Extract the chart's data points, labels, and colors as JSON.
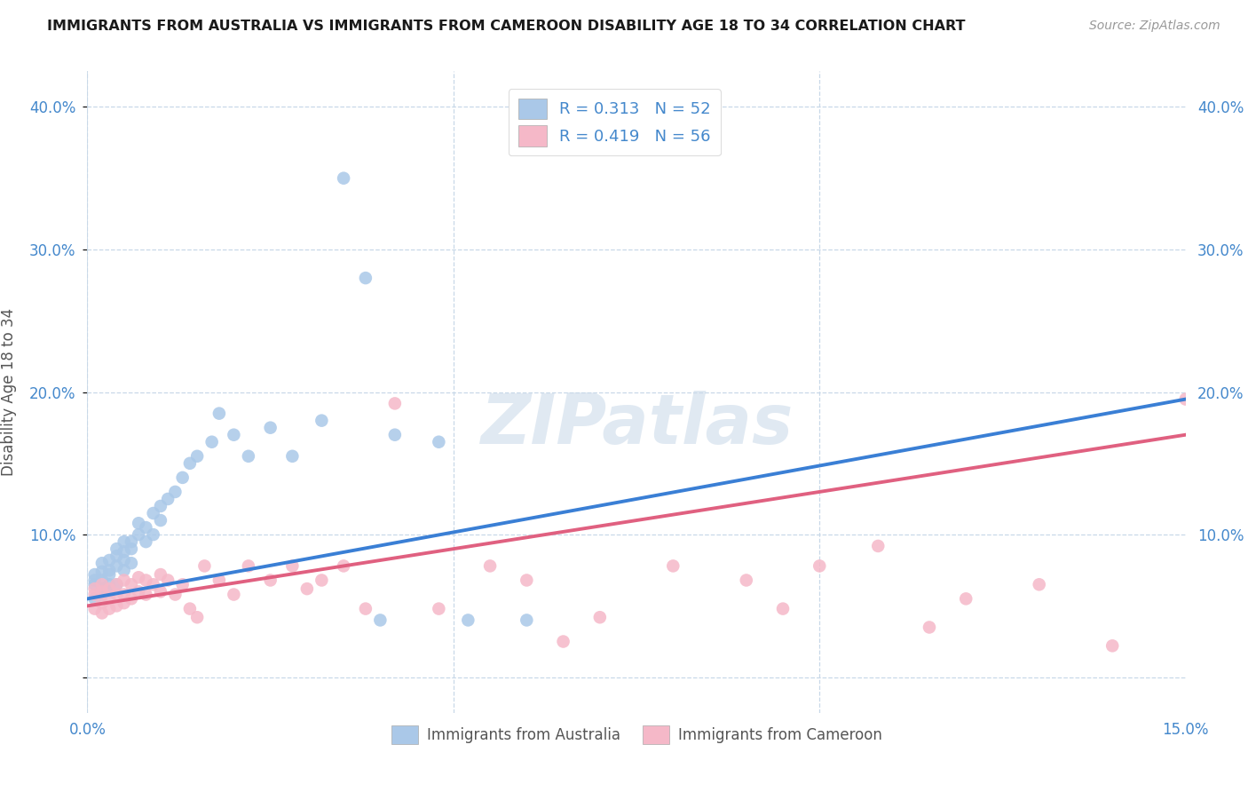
{
  "title": "IMMIGRANTS FROM AUSTRALIA VS IMMIGRANTS FROM CAMEROON DISABILITY AGE 18 TO 34 CORRELATION CHART",
  "source": "Source: ZipAtlas.com",
  "ylabel": "Disability Age 18 to 34",
  "ytick_labels_left": [
    "",
    "10.0%",
    "20.0%",
    "30.0%",
    "40.0%"
  ],
  "ytick_labels_right": [
    "",
    "10.0%",
    "20.0%",
    "30.0%",
    "40.0%"
  ],
  "ytick_values": [
    0.0,
    0.1,
    0.2,
    0.3,
    0.4
  ],
  "xlim": [
    0.0,
    0.15
  ],
  "ylim": [
    -0.025,
    0.425
  ],
  "australia_color": "#aac8e8",
  "cameroon_color": "#f5b8c8",
  "australia_line_color": "#3a7fd5",
  "cameroon_line_color": "#e06080",
  "trend_ext_color": "#b0b8c8",
  "R_australia": 0.313,
  "N_australia": 52,
  "R_cameroon": 0.419,
  "N_cameroon": 56,
  "legend_label_australia": "Immigrants from Australia",
  "legend_label_cameroon": "Immigrants from Cameroon",
  "watermark": "ZIPatlas",
  "australia_x": [
    0.001,
    0.001,
    0.001,
    0.001,
    0.002,
    0.002,
    0.002,
    0.002,
    0.002,
    0.003,
    0.003,
    0.003,
    0.003,
    0.003,
    0.004,
    0.004,
    0.004,
    0.004,
    0.005,
    0.005,
    0.005,
    0.005,
    0.006,
    0.006,
    0.006,
    0.007,
    0.007,
    0.008,
    0.008,
    0.009,
    0.009,
    0.01,
    0.01,
    0.011,
    0.012,
    0.013,
    0.014,
    0.015,
    0.017,
    0.018,
    0.02,
    0.022,
    0.025,
    0.028,
    0.032,
    0.035,
    0.038,
    0.04,
    0.042,
    0.048,
    0.052,
    0.06
  ],
  "australia_y": [
    0.055,
    0.065,
    0.068,
    0.072,
    0.058,
    0.062,
    0.068,
    0.074,
    0.08,
    0.06,
    0.065,
    0.072,
    0.075,
    0.082,
    0.065,
    0.078,
    0.085,
    0.09,
    0.075,
    0.082,
    0.088,
    0.095,
    0.08,
    0.09,
    0.095,
    0.1,
    0.108,
    0.095,
    0.105,
    0.1,
    0.115,
    0.11,
    0.12,
    0.125,
    0.13,
    0.14,
    0.15,
    0.155,
    0.165,
    0.185,
    0.17,
    0.155,
    0.175,
    0.155,
    0.18,
    0.35,
    0.28,
    0.04,
    0.17,
    0.165,
    0.04,
    0.04
  ],
  "cameroon_x": [
    0.001,
    0.001,
    0.001,
    0.002,
    0.002,
    0.002,
    0.002,
    0.003,
    0.003,
    0.003,
    0.004,
    0.004,
    0.004,
    0.005,
    0.005,
    0.005,
    0.006,
    0.006,
    0.007,
    0.007,
    0.008,
    0.008,
    0.009,
    0.01,
    0.01,
    0.011,
    0.012,
    0.013,
    0.014,
    0.015,
    0.016,
    0.018,
    0.02,
    0.022,
    0.025,
    0.028,
    0.03,
    0.032,
    0.035,
    0.038,
    0.042,
    0.048,
    0.055,
    0.06,
    0.065,
    0.07,
    0.08,
    0.09,
    0.095,
    0.1,
    0.108,
    0.115,
    0.12,
    0.13,
    0.14,
    0.15
  ],
  "cameroon_y": [
    0.048,
    0.058,
    0.062,
    0.045,
    0.052,
    0.06,
    0.065,
    0.048,
    0.055,
    0.062,
    0.05,
    0.058,
    0.065,
    0.052,
    0.058,
    0.068,
    0.055,
    0.065,
    0.06,
    0.07,
    0.058,
    0.068,
    0.065,
    0.06,
    0.072,
    0.068,
    0.058,
    0.065,
    0.048,
    0.042,
    0.078,
    0.068,
    0.058,
    0.078,
    0.068,
    0.078,
    0.062,
    0.068,
    0.078,
    0.048,
    0.192,
    0.048,
    0.078,
    0.068,
    0.025,
    0.042,
    0.078,
    0.068,
    0.048,
    0.078,
    0.092,
    0.035,
    0.055,
    0.065,
    0.022,
    0.195
  ],
  "xtick_positions": [
    0.0,
    0.05,
    0.1,
    0.15
  ],
  "xtick_labels": [
    "",
    "",
    "",
    ""
  ]
}
